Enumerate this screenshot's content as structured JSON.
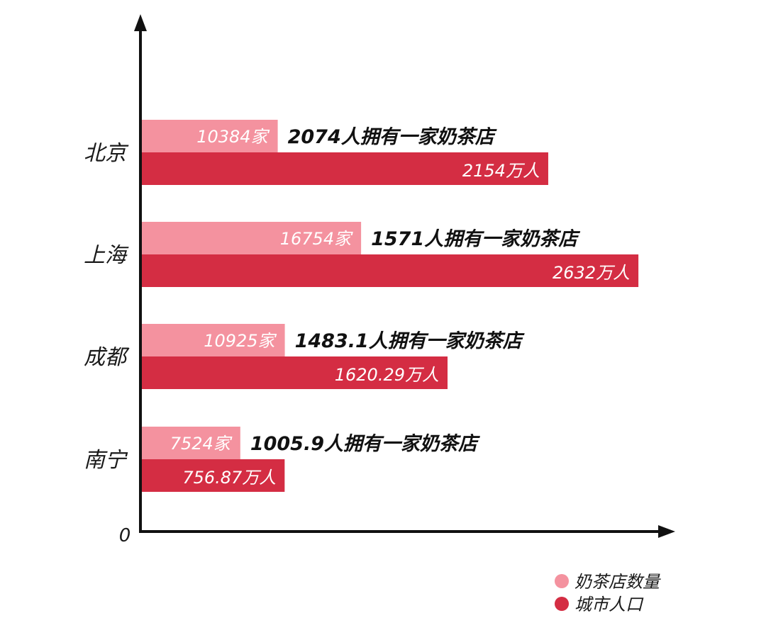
{
  "chart_data": {
    "type": "bar",
    "orientation": "horizontal",
    "title": "",
    "xlabel": "",
    "ylabel": "",
    "origin_label": "0",
    "grid": false,
    "legend_position": "bottom-right",
    "categories": [
      "北京",
      "上海",
      "成都",
      "南宁"
    ],
    "series": [
      {
        "name": "奶茶店数量",
        "color": "#f4929f",
        "values": [
          10384,
          16754,
          10925,
          7524
        ],
        "labels": [
          "10384家",
          "16754家",
          "10925家",
          "7524家"
        ]
      },
      {
        "name": "城市人口",
        "color": "#d42d43",
        "values": [
          2154,
          2632,
          1620.29,
          756.87
        ],
        "labels": [
          "2154万人",
          "2632万人",
          "1620.29万人",
          "756.87万人"
        ]
      }
    ],
    "annotations": [
      "2074人拥有一家奶茶店",
      "1571人拥有一家奶茶店",
      "1483.1人拥有一家奶茶店",
      "1005.9人拥有一家奶茶店"
    ]
  }
}
